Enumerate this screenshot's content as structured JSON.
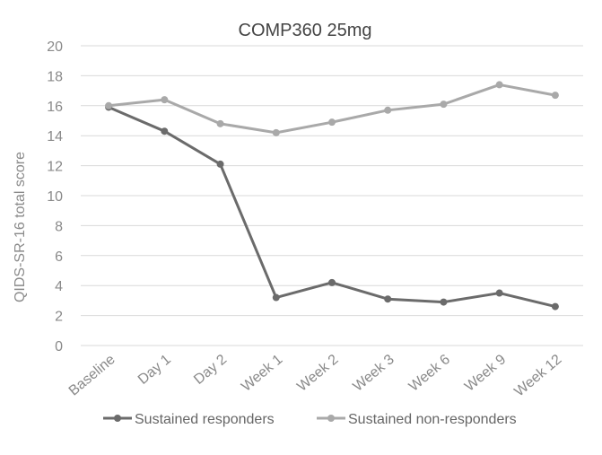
{
  "chart_data": {
    "type": "line",
    "title": "COMP360 25mg",
    "xlabel": "",
    "ylabel": "QIDS-SR-16  total score",
    "categories": [
      "Baseline",
      "Day 1",
      "Day 2",
      "Week 1",
      "Week 2",
      "Week 3",
      "Week 6",
      "Week 9",
      "Week 12"
    ],
    "ylim": [
      0,
      20
    ],
    "yticks": [
      0,
      2,
      4,
      6,
      8,
      10,
      12,
      14,
      16,
      18,
      20
    ],
    "grid": true,
    "legend_position": "bottom",
    "series": [
      {
        "name": "Sustained responders",
        "color": "#6b6b6b",
        "values": [
          15.9,
          14.3,
          12.1,
          3.2,
          4.2,
          3.1,
          2.9,
          3.5,
          2.6
        ]
      },
      {
        "name": "Sustained non-responders",
        "color": "#a9a9a9",
        "values": [
          16.0,
          16.4,
          14.8,
          14.2,
          14.9,
          15.7,
          16.1,
          17.4,
          16.7
        ]
      }
    ]
  }
}
